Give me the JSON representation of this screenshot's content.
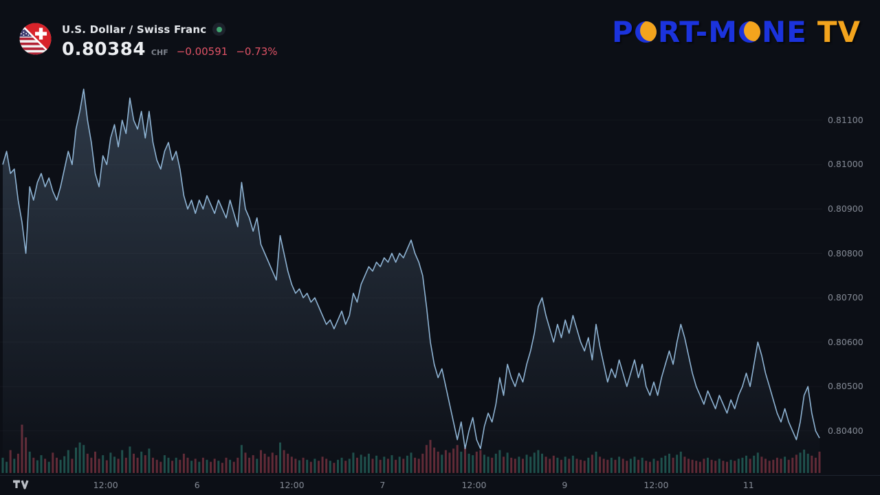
{
  "header": {
    "symbol_title": "U.S. Dollar / Swiss Franc",
    "price": "0.80384",
    "currency": "CHF",
    "change_abs": "−0.00591",
    "change_pct": "−0.73%",
    "change_color": "#e05366",
    "market_status": "open",
    "status_dot_color": "#40a36f"
  },
  "branding": {
    "segments": [
      "P",
      "RT-M",
      "NE"
    ],
    "suffix": "TV",
    "blue": "#1b33dd",
    "orange": "#f3a41d"
  },
  "attribution": {
    "provider_icon": "tradingview-icon"
  },
  "chart_data": {
    "type": "area",
    "title": "U.S. Dollar / Swiss Franc",
    "symbol": "USD/CHF",
    "current_price": 0.80384,
    "change": -0.00591,
    "change_percent": -0.73,
    "legend_position": "none",
    "grid": "faint-horizontal",
    "ylim": [
      0.80302,
      0.81216
    ],
    "y_axis": {
      "side": "right",
      "ticks": [
        "0.81100",
        "0.81000",
        "0.80900",
        "0.80800",
        "0.80700",
        "0.80600",
        "0.80500",
        "0.80400"
      ]
    },
    "x_axis": {
      "labels": [
        "12:00",
        "6",
        "12:00",
        "7",
        "12:00",
        "9",
        "12:00",
        "11"
      ],
      "positions": [
        0.126,
        0.238,
        0.354,
        0.465,
        0.577,
        0.688,
        0.8,
        0.913
      ]
    },
    "line_color": "#8fb4d4",
    "area_top_color": "rgba(140,175,210,0.28)",
    "area_bottom_color": "rgba(140,175,210,0)",
    "volume_up_color": "rgba(54,160,140,0.45)",
    "volume_down_color": "rgba(224,83,102,0.40)",
    "prices": [
      0.81,
      0.8103,
      0.8098,
      0.8099,
      0.8092,
      0.8087,
      0.808,
      0.8095,
      0.8092,
      0.8096,
      0.8098,
      0.8095,
      0.8097,
      0.8094,
      0.8092,
      0.8095,
      0.8099,
      0.8103,
      0.81,
      0.8108,
      0.8112,
      0.8117,
      0.811,
      0.8105,
      0.8098,
      0.8095,
      0.8102,
      0.81,
      0.8106,
      0.8109,
      0.8104,
      0.811,
      0.8107,
      0.8115,
      0.811,
      0.8108,
      0.8112,
      0.8106,
      0.8112,
      0.8105,
      0.8101,
      0.8099,
      0.8103,
      0.8105,
      0.8101,
      0.8103,
      0.8099,
      0.8093,
      0.809,
      0.8092,
      0.8089,
      0.8092,
      0.809,
      0.8093,
      0.8091,
      0.8089,
      0.8092,
      0.809,
      0.8088,
      0.8092,
      0.8089,
      0.8086,
      0.8096,
      0.809,
      0.8088,
      0.8085,
      0.8088,
      0.8082,
      0.808,
      0.8078,
      0.8076,
      0.8074,
      0.8084,
      0.808,
      0.8076,
      0.8073,
      0.8071,
      0.8072,
      0.807,
      0.8071,
      0.8069,
      0.807,
      0.8068,
      0.8066,
      0.8064,
      0.8065,
      0.8063,
      0.8065,
      0.8067,
      0.8064,
      0.8066,
      0.8071,
      0.8069,
      0.8073,
      0.8075,
      0.8077,
      0.8076,
      0.8078,
      0.8077,
      0.8079,
      0.8078,
      0.808,
      0.8078,
      0.808,
      0.8079,
      0.8081,
      0.8083,
      0.808,
      0.8078,
      0.8075,
      0.8068,
      0.806,
      0.8055,
      0.8052,
      0.8054,
      0.805,
      0.8046,
      0.8042,
      0.8038,
      0.8042,
      0.8036,
      0.804,
      0.8043,
      0.8038,
      0.8036,
      0.8041,
      0.8044,
      0.8042,
      0.8046,
      0.8052,
      0.8048,
      0.8055,
      0.8052,
      0.805,
      0.8053,
      0.8051,
      0.8055,
      0.8058,
      0.8062,
      0.8068,
      0.807,
      0.8066,
      0.8063,
      0.806,
      0.8064,
      0.8061,
      0.8065,
      0.8062,
      0.8066,
      0.8063,
      0.806,
      0.8058,
      0.8061,
      0.8056,
      0.8064,
      0.8059,
      0.8055,
      0.8051,
      0.8054,
      0.8052,
      0.8056,
      0.8053,
      0.805,
      0.8053,
      0.8056,
      0.8052,
      0.8055,
      0.805,
      0.8048,
      0.8051,
      0.8048,
      0.8052,
      0.8055,
      0.8058,
      0.8055,
      0.806,
      0.8064,
      0.8061,
      0.8057,
      0.8053,
      0.805,
      0.8048,
      0.8046,
      0.8049,
      0.8047,
      0.8045,
      0.8048,
      0.8046,
      0.8044,
      0.8047,
      0.8045,
      0.8048,
      0.805,
      0.8053,
      0.805,
      0.8055,
      0.806,
      0.8057,
      0.8053,
      0.805,
      0.8047,
      0.8044,
      0.8042,
      0.8045,
      0.8042,
      0.804,
      0.8038,
      0.8042,
      0.8048,
      0.805,
      0.8044,
      0.804,
      0.80384
    ],
    "volumes": [
      0.3,
      0.22,
      0.45,
      0.28,
      0.38,
      0.95,
      0.7,
      0.42,
      0.3,
      0.25,
      0.35,
      0.28,
      0.22,
      0.4,
      0.3,
      0.26,
      0.33,
      0.45,
      0.28,
      0.5,
      0.6,
      0.55,
      0.38,
      0.3,
      0.42,
      0.28,
      0.35,
      0.25,
      0.4,
      0.32,
      0.28,
      0.45,
      0.3,
      0.52,
      0.38,
      0.3,
      0.42,
      0.35,
      0.48,
      0.3,
      0.26,
      0.22,
      0.35,
      0.3,
      0.24,
      0.3,
      0.26,
      0.38,
      0.3,
      0.24,
      0.28,
      0.22,
      0.3,
      0.26,
      0.22,
      0.28,
      0.24,
      0.2,
      0.3,
      0.26,
      0.22,
      0.3,
      0.55,
      0.4,
      0.3,
      0.35,
      0.28,
      0.45,
      0.38,
      0.32,
      0.4,
      0.35,
      0.6,
      0.45,
      0.38,
      0.32,
      0.28,
      0.25,
      0.3,
      0.26,
      0.22,
      0.28,
      0.24,
      0.32,
      0.28,
      0.24,
      0.2,
      0.26,
      0.3,
      0.24,
      0.28,
      0.4,
      0.3,
      0.36,
      0.32,
      0.38,
      0.28,
      0.34,
      0.26,
      0.32,
      0.28,
      0.35,
      0.26,
      0.32,
      0.28,
      0.34,
      0.4,
      0.3,
      0.28,
      0.38,
      0.55,
      0.65,
      0.5,
      0.42,
      0.36,
      0.45,
      0.4,
      0.48,
      0.55,
      0.42,
      0.5,
      0.38,
      0.35,
      0.42,
      0.45,
      0.36,
      0.32,
      0.3,
      0.38,
      0.45,
      0.32,
      0.4,
      0.3,
      0.28,
      0.32,
      0.28,
      0.36,
      0.32,
      0.4,
      0.45,
      0.38,
      0.32,
      0.28,
      0.34,
      0.3,
      0.26,
      0.32,
      0.28,
      0.34,
      0.28,
      0.26,
      0.24,
      0.3,
      0.36,
      0.42,
      0.32,
      0.28,
      0.26,
      0.3,
      0.26,
      0.32,
      0.28,
      0.24,
      0.28,
      0.32,
      0.26,
      0.3,
      0.24,
      0.22,
      0.28,
      0.24,
      0.3,
      0.34,
      0.38,
      0.3,
      0.36,
      0.42,
      0.32,
      0.28,
      0.26,
      0.24,
      0.22,
      0.28,
      0.3,
      0.26,
      0.24,
      0.28,
      0.24,
      0.22,
      0.26,
      0.24,
      0.28,
      0.3,
      0.34,
      0.28,
      0.34,
      0.4,
      0.32,
      0.28,
      0.24,
      0.26,
      0.3,
      0.28,
      0.32,
      0.26,
      0.3,
      0.36,
      0.4,
      0.46,
      0.38,
      0.34,
      0.3,
      0.42
    ]
  }
}
